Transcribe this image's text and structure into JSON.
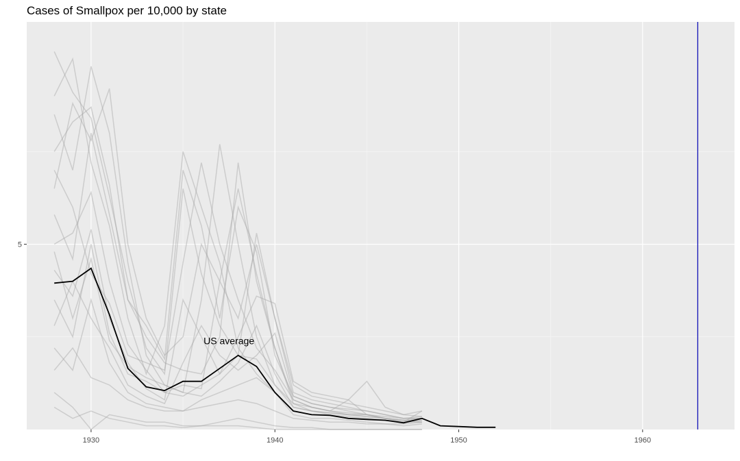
{
  "chart_data": {
    "type": "line",
    "title": "Cases of Smallpox per 10,000 by state",
    "xlabel": "",
    "ylabel": "",
    "x_ticks": [
      1930,
      1940,
      1950,
      1960
    ],
    "y_ticks": [
      5
    ],
    "xlim": [
      1926.5,
      1965
    ],
    "ylim": [
      0,
      11
    ],
    "grid": true,
    "background": "#ebebeb",
    "vline": {
      "x": 1963,
      "color": "#0000b3"
    },
    "us_average": {
      "label": "US average",
      "color": "#000000",
      "x": [
        1928,
        1929,
        1930,
        1931,
        1932,
        1933,
        1934,
        1935,
        1936,
        1937,
        1938,
        1939,
        1940,
        1941,
        1942,
        1943,
        1944,
        1945,
        1946,
        1947,
        1948,
        1949,
        1950,
        1951,
        1952
      ],
      "y": [
        3.95,
        4.0,
        4.35,
        3.1,
        1.65,
        1.15,
        1.05,
        1.3,
        1.3,
        1.65,
        2.0,
        1.7,
        1.0,
        0.5,
        0.4,
        0.38,
        0.3,
        0.27,
        0.25,
        0.18,
        0.3,
        0.1,
        0.08,
        0.06,
        0.06
      ]
    },
    "annotation": {
      "text": "US average",
      "x": 1937.5,
      "y": 2.3
    },
    "state_series_color": "#a6a6a6",
    "state_series": [
      {
        "x": [
          1928,
          1929,
          1930,
          1931,
          1932,
          1933,
          1934,
          1935,
          1936,
          1937,
          1938,
          1939,
          1940,
          1941,
          1942,
          1943,
          1944,
          1945,
          1946,
          1947,
          1948
        ],
        "y": [
          10.2,
          9.1,
          8.4,
          6.3,
          4.0,
          2.2,
          1.5,
          6.5,
          4.2,
          2.8,
          2.0,
          1.9,
          1.2,
          0.7,
          0.5,
          0.4,
          0.35,
          0.3,
          0.25,
          0.2,
          0.2
        ]
      },
      {
        "x": [
          1928,
          1929,
          1930,
          1931,
          1932,
          1933,
          1934,
          1935,
          1936,
          1937,
          1938,
          1939,
          1940,
          1941,
          1942,
          1943,
          1944,
          1945,
          1946,
          1947,
          1948
        ],
        "y": [
          9.0,
          10.0,
          7.2,
          5.5,
          3.0,
          1.5,
          2.8,
          7.5,
          6.0,
          4.5,
          2.2,
          1.5,
          1.0,
          0.4,
          0.3,
          0.3,
          0.25,
          0.2,
          0.15,
          0.15,
          0.2
        ]
      },
      {
        "x": [
          1928,
          1929,
          1930,
          1931,
          1932,
          1933,
          1934,
          1935,
          1936,
          1937,
          1938,
          1939,
          1940,
          1941,
          1942,
          1943,
          1944,
          1945,
          1946,
          1947,
          1948
        ],
        "y": [
          8.5,
          7.0,
          9.8,
          8.0,
          4.5,
          2.0,
          1.2,
          1.0,
          3.5,
          7.7,
          5.0,
          2.5,
          1.2,
          0.6,
          0.5,
          0.45,
          0.4,
          0.35,
          0.3,
          0.25,
          0.3
        ]
      },
      {
        "x": [
          1928,
          1929,
          1930,
          1931,
          1932,
          1933,
          1934,
          1935,
          1936,
          1937,
          1938,
          1939,
          1940,
          1941,
          1942,
          1943,
          1944,
          1945,
          1946,
          1947,
          1948
        ],
        "y": [
          7.5,
          8.3,
          8.7,
          6.6,
          3.5,
          2.5,
          1.8,
          1.6,
          1.5,
          2.5,
          7.2,
          4.0,
          2.2,
          0.8,
          0.6,
          0.5,
          0.45,
          0.4,
          0.3,
          0.25,
          0.25
        ]
      },
      {
        "x": [
          1928,
          1929,
          1930,
          1931,
          1932,
          1933,
          1934,
          1935,
          1936,
          1937,
          1938,
          1939,
          1940,
          1941,
          1942,
          1943,
          1944,
          1945,
          1946,
          1947,
          1948
        ],
        "y": [
          6.5,
          8.8,
          7.8,
          9.2,
          5.0,
          3.0,
          2.0,
          2.5,
          5.0,
          4.0,
          3.0,
          5.0,
          3.0,
          1.0,
          0.8,
          0.7,
          0.6,
          0.5,
          0.4,
          0.3,
          0.35
        ]
      },
      {
        "x": [
          1928,
          1929,
          1930,
          1931,
          1932,
          1933,
          1934,
          1935,
          1936,
          1937,
          1938,
          1939,
          1940,
          1941,
          1942,
          1943,
          1944,
          1945,
          1946,
          1947,
          1948
        ],
        "y": [
          5.8,
          4.6,
          8.0,
          5.8,
          3.5,
          2.8,
          1.9,
          7.0,
          5.5,
          3.0,
          6.0,
          4.8,
          2.0,
          0.9,
          0.7,
          0.6,
          0.55,
          0.5,
          0.4,
          0.3,
          0.3
        ]
      },
      {
        "x": [
          1928,
          1929,
          1930,
          1931,
          1932,
          1933,
          1934,
          1935,
          1936,
          1937,
          1938,
          1939,
          1940,
          1941,
          1942,
          1943,
          1944,
          1945,
          1946,
          1947,
          1948
        ],
        "y": [
          5.0,
          5.3,
          6.4,
          4.0,
          2.3,
          1.6,
          1.0,
          1.2,
          1.1,
          4.0,
          6.5,
          4.2,
          2.2,
          0.7,
          0.6,
          0.5,
          0.4,
          0.4,
          0.3,
          0.2,
          0.25
        ]
      },
      {
        "x": [
          1928,
          1929,
          1930,
          1931,
          1932,
          1933,
          1934,
          1935,
          1936,
          1937,
          1938,
          1939,
          1940,
          1941,
          1942,
          1943,
          1944,
          1945,
          1946,
          1947,
          1948
        ],
        "y": [
          4.3,
          3.6,
          5.4,
          3.0,
          1.8,
          1.1,
          0.8,
          3.5,
          2.5,
          1.5,
          2.0,
          5.3,
          3.0,
          1.2,
          0.9,
          0.8,
          0.7,
          0.6,
          0.5,
          0.4,
          0.5
        ]
      },
      {
        "x": [
          1928,
          1929,
          1930,
          1931,
          1932,
          1933,
          1934,
          1935,
          1936,
          1937,
          1938,
          1939,
          1940,
          1941,
          1942,
          1943,
          1944,
          1945,
          1946,
          1947,
          1948
        ],
        "y": [
          3.5,
          2.5,
          5.0,
          2.6,
          1.5,
          1.3,
          1.0,
          0.9,
          1.2,
          1.5,
          2.5,
          3.6,
          3.4,
          1.3,
          1.0,
          0.9,
          0.8,
          1.3,
          0.6,
          0.4,
          0.35
        ]
      },
      {
        "x": [
          1928,
          1929,
          1930,
          1931,
          1932,
          1933,
          1934,
          1935,
          1936,
          1937,
          1938,
          1939,
          1940,
          1941,
          1942,
          1943,
          1944,
          1945,
          1946,
          1947,
          1948
        ],
        "y": [
          2.8,
          4.0,
          3.0,
          2.2,
          1.2,
          0.9,
          0.7,
          1.8,
          2.8,
          2.0,
          1.6,
          2.0,
          2.6,
          0.9,
          0.7,
          0.6,
          0.5,
          0.4,
          0.3,
          0.2,
          0.3
        ]
      },
      {
        "x": [
          1928,
          1929,
          1930,
          1931,
          1932,
          1933,
          1934,
          1935,
          1936,
          1937,
          1938,
          1939,
          1940,
          1941,
          1942,
          1943,
          1944,
          1945,
          1946,
          1947,
          1948
        ],
        "y": [
          2.2,
          1.6,
          3.5,
          1.8,
          1.0,
          0.7,
          0.6,
          0.5,
          0.8,
          1.0,
          1.2,
          1.4,
          1.0,
          0.5,
          0.4,
          0.4,
          0.3,
          0.3,
          0.25,
          0.2,
          0.5
        ]
      },
      {
        "x": [
          1928,
          1929,
          1930,
          1931,
          1932,
          1933,
          1934,
          1935,
          1936,
          1937,
          1938,
          1939,
          1940,
          1941,
          1942,
          1943,
          1944,
          1945,
          1946,
          1947,
          1948
        ],
        "y": [
          1.6,
          2.2,
          1.4,
          1.2,
          0.8,
          0.6,
          0.5,
          0.5,
          0.6,
          0.7,
          0.8,
          0.7,
          0.5,
          0.3,
          0.25,
          0.2,
          0.2,
          0.15,
          0.15,
          0.1,
          0.15
        ]
      },
      {
        "x": [
          1928,
          1929,
          1930,
          1931,
          1932,
          1933,
          1934,
          1935,
          1936,
          1937,
          1938,
          1939,
          1940,
          1941,
          1942,
          1943,
          1944,
          1945,
          1946,
          1947,
          1948
        ],
        "y": [
          1.0,
          0.6,
          0.0,
          0.4,
          0.3,
          0.2,
          0.2,
          0.1,
          0.1,
          0.2,
          0.3,
          0.2,
          0.1,
          0.05,
          0.05,
          0.0,
          0.0,
          0.0,
          0.0,
          0.0,
          0.0
        ]
      },
      {
        "x": [
          1928,
          1929,
          1930,
          1931,
          1932,
          1933,
          1934,
          1935,
          1936,
          1937,
          1938,
          1939,
          1940,
          1941,
          1942,
          1943,
          1944,
          1945,
          1946,
          1947,
          1948
        ],
        "y": [
          0.6,
          0.3,
          0.5,
          0.3,
          0.2,
          0.1,
          0.1,
          0.05,
          0.1,
          0.1,
          0.1,
          0.05,
          0.0,
          0.0,
          0.0,
          0.0,
          0.0,
          0.0,
          0.0,
          0.0,
          0.0
        ]
      },
      {
        "x": [
          1928,
          1929,
          1930,
          1931,
          1932,
          1933,
          1934,
          1935,
          1936,
          1937,
          1938,
          1939,
          1940,
          1941,
          1942,
          1943,
          1944,
          1945,
          1946,
          1947,
          1948
        ],
        "y": [
          4.8,
          3.0,
          4.6,
          2.4,
          1.7,
          1.4,
          1.2,
          1.0,
          0.9,
          1.3,
          1.8,
          2.8,
          1.5,
          0.6,
          0.5,
          0.45,
          0.4,
          0.35,
          0.3,
          0.25,
          0.2
        ]
      },
      {
        "x": [
          1928,
          1929,
          1930,
          1931,
          1932,
          1933,
          1934,
          1935,
          1936,
          1937,
          1938,
          1939,
          1940,
          1941,
          1942,
          1943,
          1944,
          1945,
          1946,
          1947,
          1948
        ],
        "y": [
          7.0,
          6.0,
          4.2,
          3.4,
          2.0,
          1.8,
          1.6,
          4.5,
          7.2,
          5.0,
          3.5,
          2.2,
          1.6,
          0.8,
          0.6,
          0.5,
          0.8,
          0.4,
          0.35,
          0.3,
          0.3
        ]
      }
    ]
  }
}
